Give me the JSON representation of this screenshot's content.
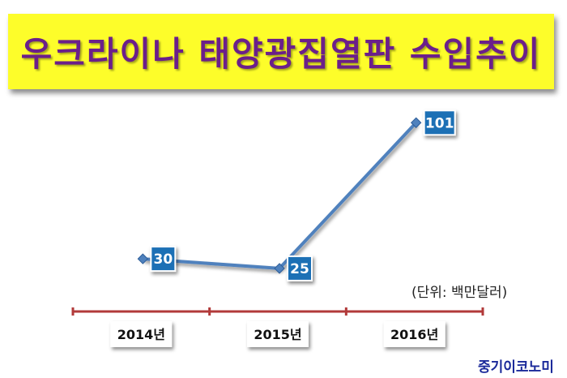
{
  "title": "우크라이나 태양광집열판 수입추이",
  "unit_note": "(단위: 백만달러)",
  "brand": "중기이코노미",
  "colors": {
    "banner": "#fdfd2a",
    "title_text": "#6b1f8a",
    "line": "#4f81bd",
    "label_box": "#1f6fb5",
    "axis": "#b23a3a",
    "brand": "#1b2a9a"
  },
  "chart_data": {
    "type": "line",
    "title": "우크라이나 태양광집열판 수입추이",
    "categories": [
      "2014년",
      "2015년",
      "2016년"
    ],
    "series": [
      {
        "values": [
          30,
          25,
          101
        ]
      }
    ],
    "data_labels": [
      "30",
      "25",
      "101"
    ],
    "xlabel": "",
    "ylabel": "",
    "ylim": [
      0,
      110
    ],
    "grid": false,
    "legend": "none"
  }
}
